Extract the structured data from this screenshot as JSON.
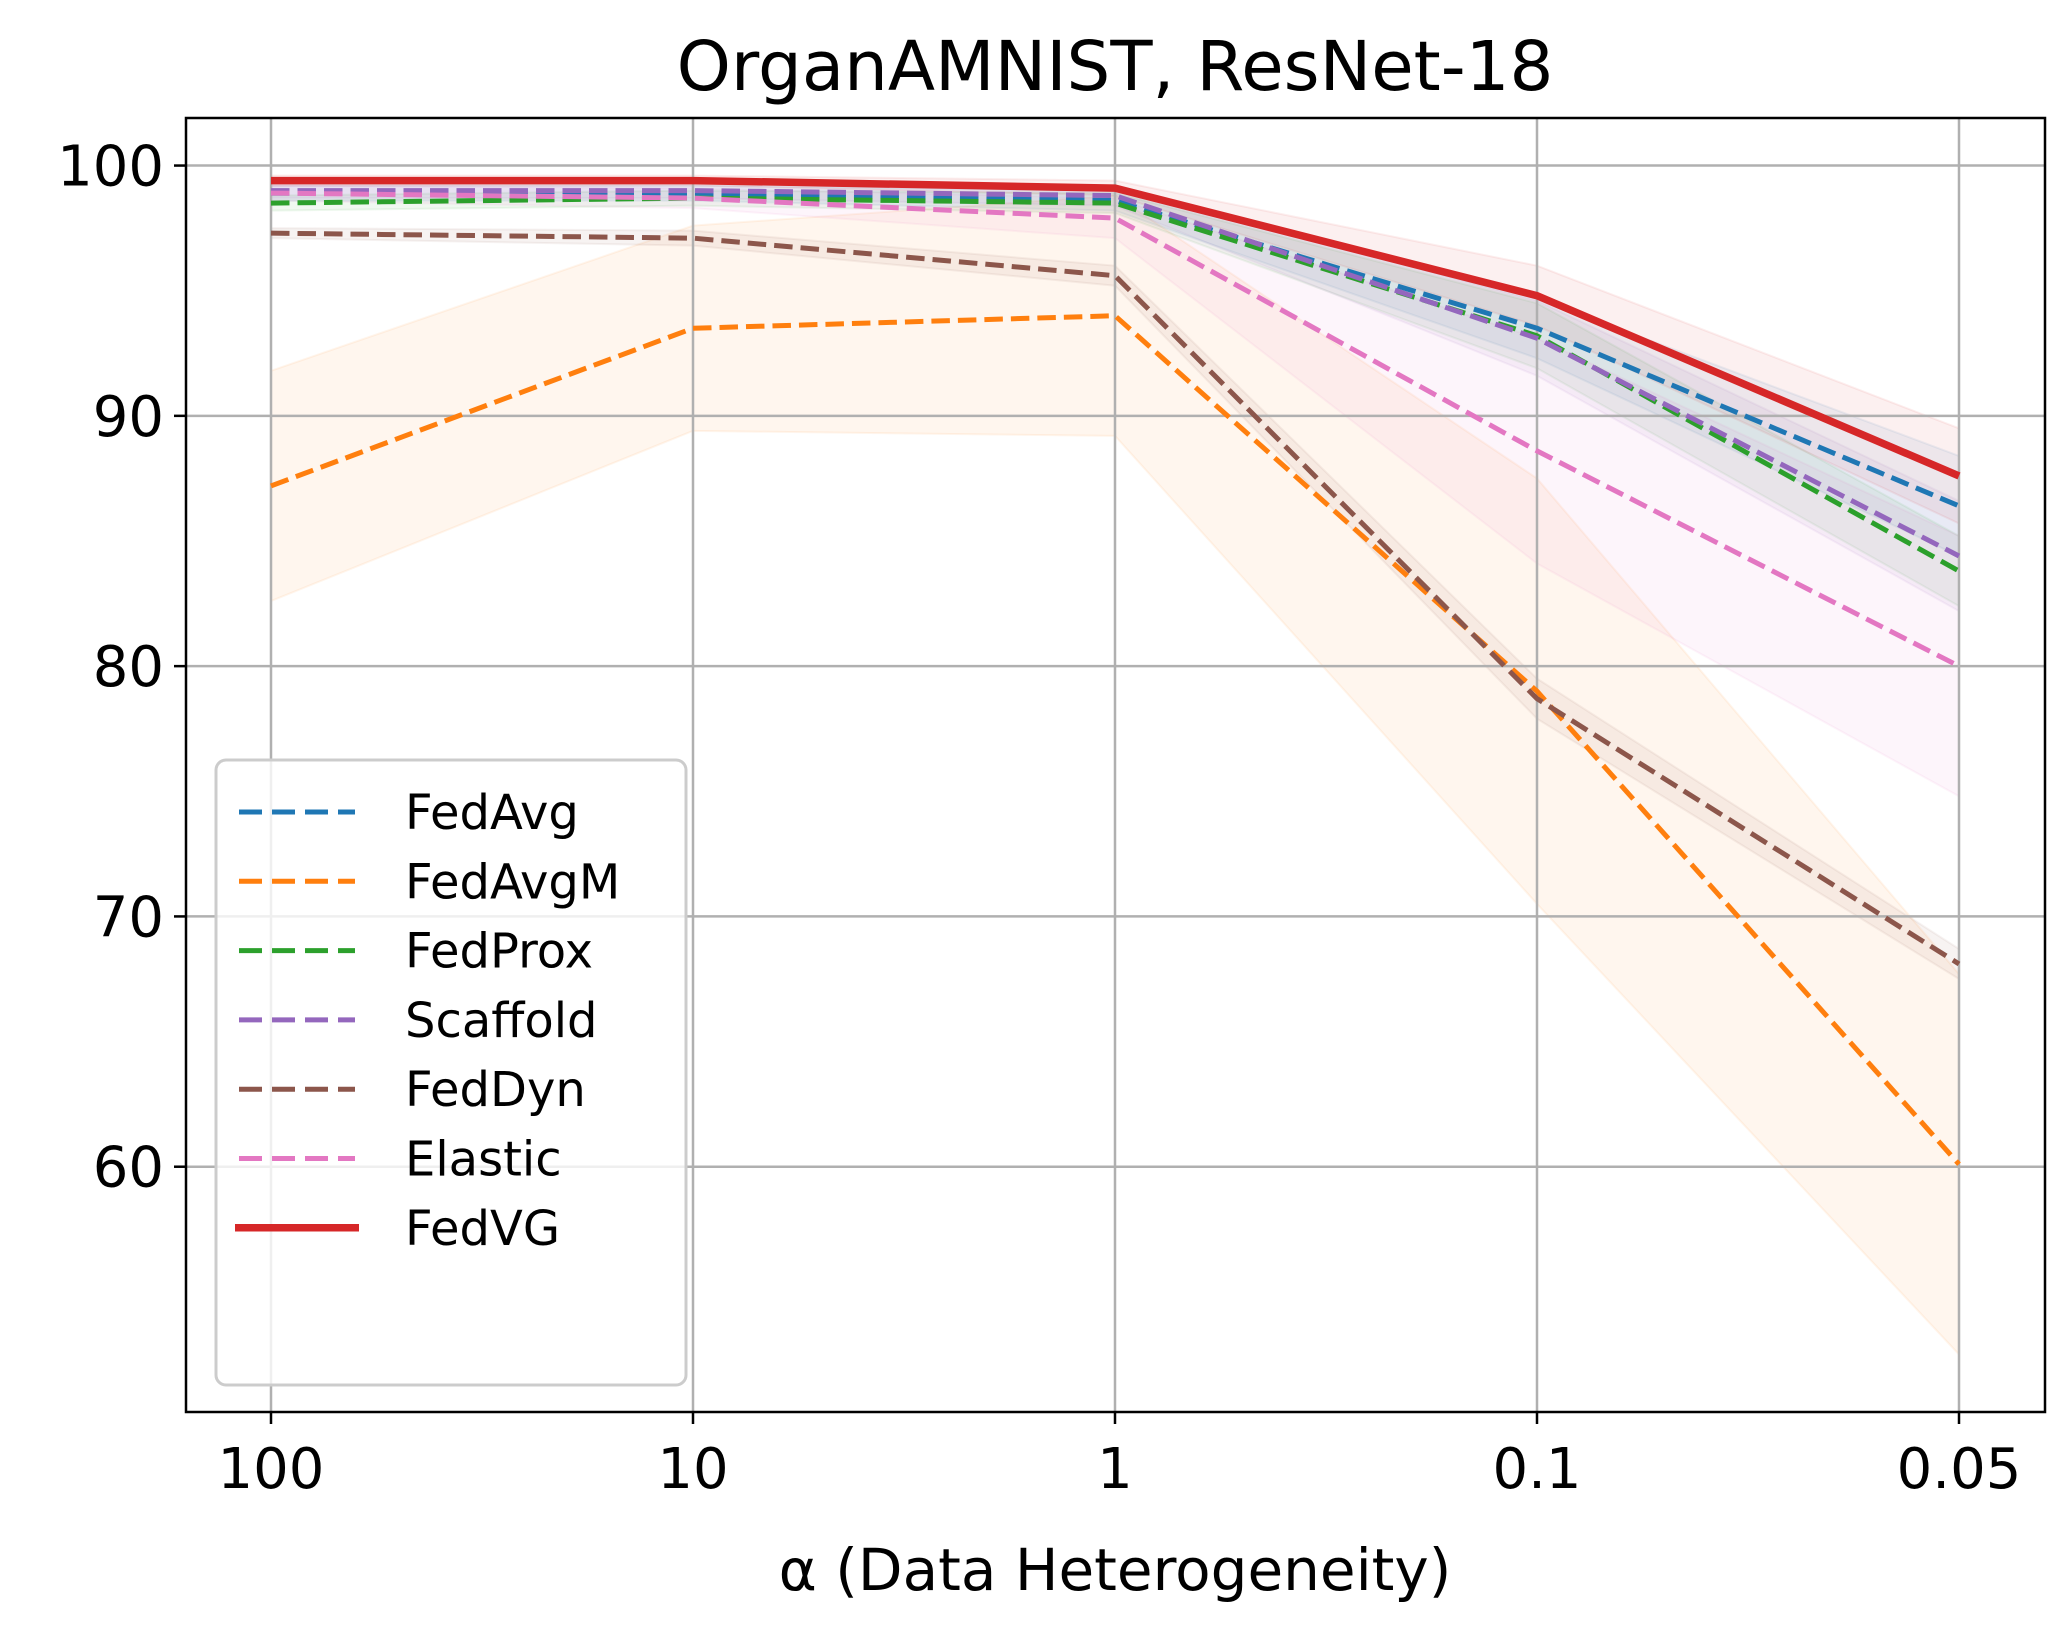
{
  "chart_data": {
    "type": "line",
    "title": "OrganAMNIST, ResNet-18",
    "xlabel": "α (Data Heterogeneity)",
    "ylabel": "",
    "categories": [
      "100",
      "10",
      "1",
      "0.1",
      "0.05"
    ],
    "ylim": [
      50.2,
      101.9
    ],
    "yticks": [
      60,
      70,
      80,
      90,
      100
    ],
    "ytick_labels": [
      "60",
      "70",
      "80",
      "90",
      "100"
    ],
    "grid": true,
    "legend_position": "lower-left",
    "series": [
      {
        "name": "FedAvg",
        "color": "#1f77b4",
        "style": "dashed",
        "values": [
          98.9,
          98.9,
          98.6,
          93.5,
          86.4
        ],
        "band": [
          0.3,
          0.3,
          0.4,
          1.2,
          2.0
        ]
      },
      {
        "name": "FedAvgM",
        "color": "#ff7f0e",
        "style": "dashed",
        "values": [
          87.2,
          93.5,
          94.0,
          79.0,
          60.1
        ],
        "band": [
          4.6,
          4.1,
          4.8,
          8.5,
          7.6
        ]
      },
      {
        "name": "FedProx",
        "color": "#2ca02c",
        "style": "dashed",
        "values": [
          98.5,
          98.7,
          98.5,
          93.2,
          83.8
        ],
        "band": [
          0.3,
          0.3,
          0.4,
          1.3,
          1.4
        ]
      },
      {
        "name": "Scaffold",
        "color": "#9467bd",
        "style": "dashed",
        "values": [
          99.0,
          99.0,
          98.8,
          93.1,
          84.4
        ],
        "band": [
          0.3,
          0.3,
          0.4,
          1.5,
          2.2
        ]
      },
      {
        "name": "FedDyn",
        "color": "#8c564b",
        "style": "dashed",
        "values": [
          97.3,
          97.1,
          95.6,
          78.7,
          68.1
        ],
        "band": [
          0.2,
          0.3,
          0.4,
          0.8,
          0.6
        ]
      },
      {
        "name": "Elastic",
        "color": "#e377c2",
        "style": "dashed",
        "values": [
          98.9,
          98.7,
          97.9,
          88.6,
          80.0
        ],
        "band": [
          0.3,
          0.4,
          0.8,
          4.5,
          5.2
        ]
      },
      {
        "name": "FedVG",
        "color": "#d62728",
        "style": "solid",
        "values": [
          99.4,
          99.4,
          99.1,
          94.8,
          87.6
        ],
        "band": [
          0.2,
          0.2,
          0.3,
          1.2,
          1.9
        ]
      }
    ]
  }
}
